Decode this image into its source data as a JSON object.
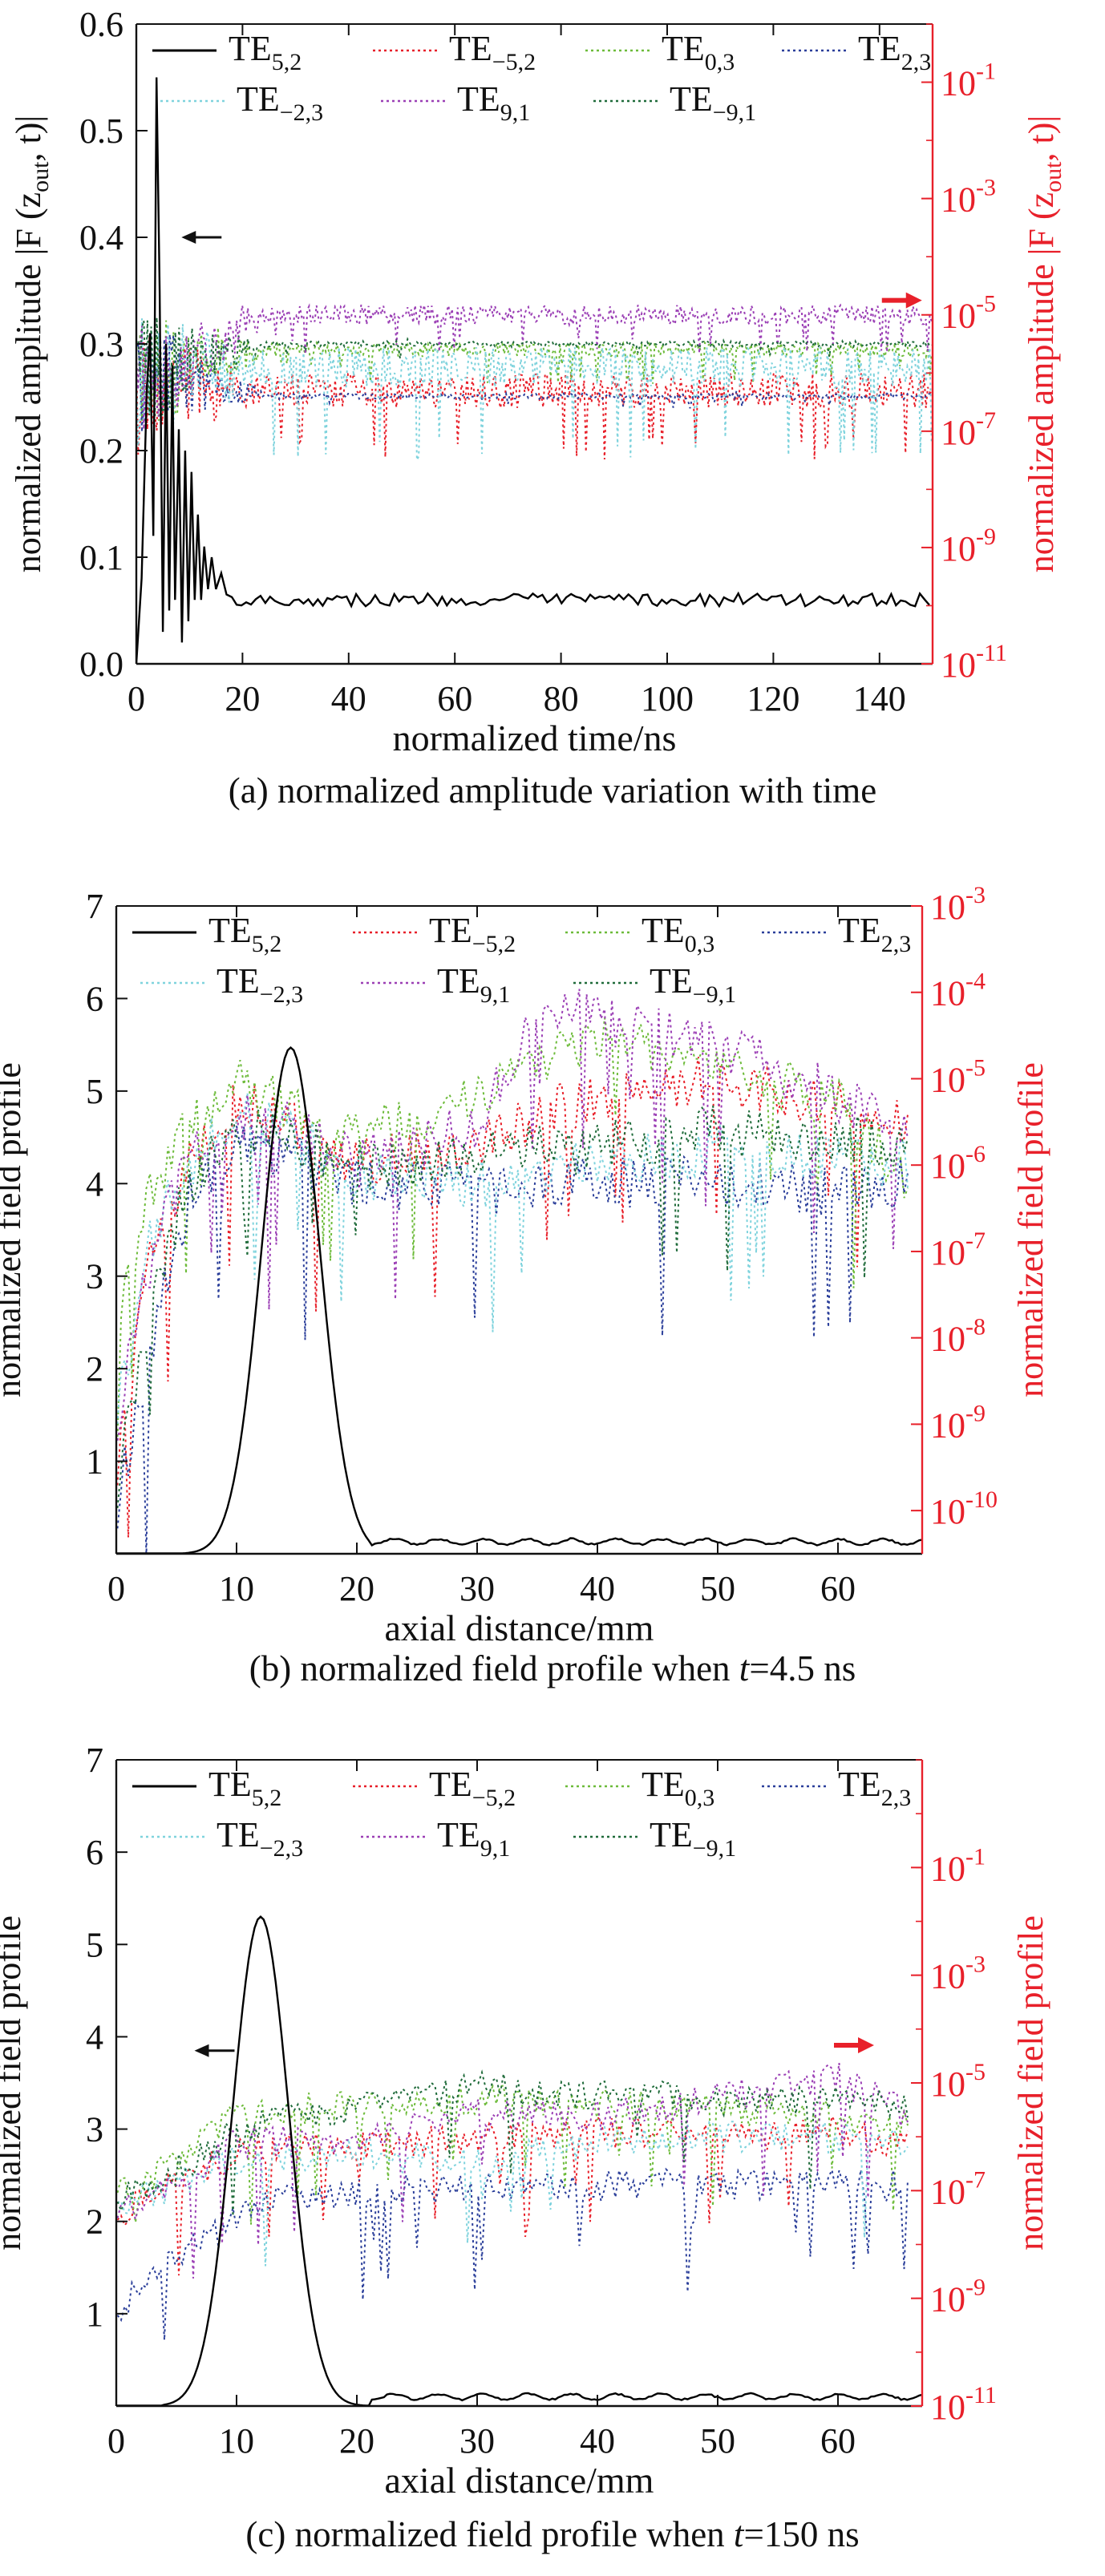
{
  "chart_data": [
    {
      "type": "line",
      "id": "a",
      "caption_parts": [
        "(a) normalized amplitude variation with time"
      ],
      "xlabel": "normalized time/ns",
      "ylabel_left": "normalized amplitude |F (z",
      "ylabel_left_sub": "out",
      "ylabel_left_tail": ", t)|",
      "ylabel_right": "normalized amplitude |F (z",
      "ylabel_right_sub": "out",
      "ylabel_right_tail": ", t)|",
      "xlim": [
        0,
        150
      ],
      "ylim_left": [
        0,
        0.6
      ],
      "ylim_right_log10": [
        -11,
        0
      ],
      "right_axis_scale": "log",
      "xticks": [
        "0",
        "20",
        "40",
        "60",
        "80",
        "100",
        "120",
        "140"
      ],
      "xtick_values": [
        0,
        20,
        40,
        60,
        80,
        100,
        120,
        140
      ],
      "yticks_left": [
        "0.0",
        "0.1",
        "0.2",
        "0.3",
        "0.4",
        "0.5",
        "0.6"
      ],
      "ytick_left_values": [
        0,
        0.1,
        0.2,
        0.3,
        0.4,
        0.5,
        0.6
      ],
      "yticks_right_exp": [
        "-1",
        "-3",
        "-5",
        "-7",
        "-9",
        "-11"
      ],
      "ytick_right_values": [
        -1,
        -3,
        -5,
        -7,
        -9,
        -11
      ],
      "tick_base": "10",
      "arrow_left": {
        "x": 8.5,
        "y": 0.4,
        "axis": "left"
      },
      "arrow_right": {
        "x": 148,
        "y": -4.75,
        "axis": "right"
      },
      "series": [
        {
          "name": "TE",
          "sub": "5,2",
          "color": "#000000",
          "style": "solid",
          "axis": "left",
          "kind": "main_time",
          "points": [
            [
              0,
              0.0
            ],
            [
              1,
              0.08
            ],
            [
              2,
              0.26
            ],
            [
              2.6,
              0.31
            ],
            [
              3.2,
              0.12
            ],
            [
              3.8,
              0.55
            ],
            [
              4.4,
              0.35
            ],
            [
              5,
              0.03
            ],
            [
              5.6,
              0.3
            ],
            [
              6.2,
              0.05
            ],
            [
              6.8,
              0.28
            ],
            [
              7.3,
              0.06
            ],
            [
              8,
              0.22
            ],
            [
              8.6,
              0.02
            ],
            [
              9.2,
              0.2
            ],
            [
              9.8,
              0.04
            ],
            [
              10.4,
              0.18
            ],
            [
              11,
              0.06
            ],
            [
              11.6,
              0.14
            ],
            [
              12.2,
              0.06
            ],
            [
              12.8,
              0.11
            ],
            [
              13.5,
              0.07
            ],
            [
              14.2,
              0.1
            ],
            [
              15,
              0.07
            ],
            [
              16,
              0.085
            ],
            [
              17,
              0.065
            ],
            [
              18,
              0.075
            ],
            [
              150,
              0.06
            ]
          ],
          "steady": 0.06,
          "jitter": 0.006
        },
        {
          "name": "TE",
          "sub": "−5,2",
          "color": "#e8202a",
          "style": "dotted",
          "axis": "right",
          "kind": "time",
          "base": -6.3,
          "spread": 0.6,
          "dips": [
            -7.3,
            -6.9
          ],
          "start": -6.2
        },
        {
          "name": "TE",
          "sub": "0,3",
          "color": "#6dbb3a",
          "style": "dotted",
          "axis": "right",
          "kind": "time",
          "base": -5.6,
          "spread": 0.25,
          "dips": [
            -6.0,
            -5.9
          ],
          "start": -6.0
        },
        {
          "name": "TE",
          "sub": "2,3",
          "color": "#2b3f9a",
          "style": "dotted",
          "axis": "right",
          "kind": "time",
          "base": -6.4,
          "spread": 0.1,
          "dips": [
            -6.5,
            -6.45
          ],
          "start": -6.0
        },
        {
          "name": "TE",
          "sub": "−2,3",
          "color": "#7fd3dd",
          "style": "dotted",
          "axis": "right",
          "kind": "time",
          "base": -5.9,
          "spread": 0.7,
          "dips": [
            -7.3,
            -7.0
          ],
          "start": -6.1
        },
        {
          "name": "TE",
          "sub": "9,1",
          "color": "#9b3fb5",
          "style": "dotted",
          "axis": "right",
          "kind": "time",
          "base": -5.0,
          "spread": 0.35,
          "dips": [
            -5.5,
            -5.4
          ],
          "start": -6.1
        },
        {
          "name": "TE",
          "sub": "−9,1",
          "color": "#1f6b3a",
          "style": "dotted",
          "axis": "right",
          "kind": "time",
          "base": -5.5,
          "spread": 0.1,
          "dips": [
            -5.6,
            -5.55
          ],
          "start": -6.0
        }
      ]
    },
    {
      "type": "line",
      "id": "b",
      "caption_parts": [
        "(b) normalized field profile when ",
        "t",
        "=4.5 ns"
      ],
      "xlabel": "axial distance/mm",
      "ylabel_left": "normalized field profile",
      "ylabel_right": "normalized field profile",
      "xlim": [
        0,
        67
      ],
      "ylim_left": [
        0,
        7
      ],
      "ylim_right_log10": [
        -10.5,
        -3
      ],
      "right_axis_scale": "log",
      "xticks": [
        "0",
        "10",
        "20",
        "30",
        "40",
        "50",
        "60"
      ],
      "xtick_values": [
        0,
        10,
        20,
        30,
        40,
        50,
        60
      ],
      "yticks_left": [
        "1",
        "2",
        "3",
        "4",
        "5",
        "6",
        "7"
      ],
      "ytick_left_values": [
        1,
        2,
        3,
        4,
        5,
        6,
        7
      ],
      "yticks_right_exp": [
        "-3",
        "-4",
        "-5",
        "-6",
        "-7",
        "-8",
        "-9",
        "-10"
      ],
      "ytick_right_values": [
        -3,
        -4,
        -5,
        -6,
        -7,
        -8,
        -9,
        -10
      ],
      "tick_base": "10",
      "series": [
        {
          "name": "TE",
          "sub": "5,2",
          "color": "#000000",
          "style": "solid",
          "axis": "left",
          "kind": "pulse",
          "center": 14.5,
          "peak": 5.47,
          "width": 3.4,
          "cut": [
            5,
            21
          ],
          "tail": 0.13
        },
        {
          "name": "TE",
          "sub": "−5,2",
          "color": "#e8202a",
          "style": "dotted",
          "axis": "right",
          "kind": "space",
          "profile": [
            [
              0,
              -9.5
            ],
            [
              3,
              -7
            ],
            [
              6,
              -6
            ],
            [
              10,
              -5.3
            ],
            [
              14,
              -5.5
            ],
            [
              20,
              -6
            ],
            [
              30,
              -5.7
            ],
            [
              40,
              -5.2
            ],
            [
              50,
              -5
            ],
            [
              60,
              -5.3
            ],
            [
              66,
              -5.6
            ]
          ]
        },
        {
          "name": "TE",
          "sub": "0,3",
          "color": "#6dbb3a",
          "style": "dotted",
          "axis": "right",
          "kind": "space",
          "profile": [
            [
              0,
              -8
            ],
            [
              3,
              -6.2
            ],
            [
              6,
              -5.6
            ],
            [
              10,
              -5.0
            ],
            [
              14,
              -5.3
            ],
            [
              20,
              -5.7
            ],
            [
              30,
              -5.2
            ],
            [
              40,
              -4.5
            ],
            [
              50,
              -4.8
            ],
            [
              60,
              -5.3
            ],
            [
              66,
              -6.2
            ]
          ]
        },
        {
          "name": "TE",
          "sub": "2,3",
          "color": "#2b3f9a",
          "style": "dotted",
          "axis": "right",
          "kind": "space",
          "profile": [
            [
              0,
              -10
            ],
            [
              3,
              -8
            ],
            [
              6,
              -6.4
            ],
            [
              10,
              -5.8
            ],
            [
              14,
              -5.9
            ],
            [
              20,
              -6.2
            ],
            [
              30,
              -6.3
            ],
            [
              40,
              -6.2
            ],
            [
              50,
              -6.2
            ],
            [
              60,
              -6.3
            ],
            [
              66,
              -6.2
            ]
          ]
        },
        {
          "name": "TE",
          "sub": "−2,3",
          "color": "#7fd3dd",
          "style": "dotted",
          "axis": "right",
          "kind": "space",
          "profile": [
            [
              0,
              -8.8
            ],
            [
              3,
              -6.8
            ],
            [
              6,
              -6
            ],
            [
              10,
              -5.4
            ],
            [
              14,
              -5.6
            ],
            [
              20,
              -6.1
            ],
            [
              30,
              -6.2
            ],
            [
              40,
              -6
            ],
            [
              50,
              -5.8
            ],
            [
              60,
              -5.9
            ],
            [
              66,
              -6
            ]
          ]
        },
        {
          "name": "TE",
          "sub": "9,1",
          "color": "#9b3fb5",
          "style": "dotted",
          "axis": "right",
          "kind": "space",
          "profile": [
            [
              0,
              -9
            ],
            [
              3,
              -7
            ],
            [
              6,
              -6
            ],
            [
              10,
              -5.4
            ],
            [
              14,
              -5.5
            ],
            [
              20,
              -6
            ],
            [
              30,
              -5.5
            ],
            [
              36,
              -4.1
            ],
            [
              40,
              -4.3
            ],
            [
              50,
              -4.6
            ],
            [
              60,
              -5.2
            ],
            [
              66,
              -5.7
            ]
          ]
        },
        {
          "name": "TE",
          "sub": "−9,1",
          "color": "#1f6b3a",
          "style": "dotted",
          "axis": "right",
          "kind": "space",
          "profile": [
            [
              0,
              -9.8
            ],
            [
              3,
              -7.5
            ],
            [
              6,
              -6.2
            ],
            [
              10,
              -5.6
            ],
            [
              14,
              -5.7
            ],
            [
              20,
              -6
            ],
            [
              30,
              -5.9
            ],
            [
              40,
              -5.8
            ],
            [
              50,
              -5.6
            ],
            [
              60,
              -5.7
            ],
            [
              66,
              -5.8
            ]
          ]
        }
      ]
    },
    {
      "type": "line",
      "id": "c",
      "caption_parts": [
        "(c) normalized field profile when ",
        "t",
        "=150 ns"
      ],
      "xlabel": "axial distance/mm",
      "ylabel_left": "normalized field profile",
      "ylabel_right": "normalized field profile",
      "xlim": [
        0,
        67
      ],
      "ylim_left": [
        0,
        7
      ],
      "ylim_right_log10": [
        -11,
        1
      ],
      "right_axis_scale": "log",
      "xticks": [
        "0",
        "10",
        "20",
        "30",
        "40",
        "50",
        "60"
      ],
      "xtick_values": [
        0,
        10,
        20,
        30,
        40,
        50,
        60
      ],
      "yticks_left": [
        "1",
        "2",
        "3",
        "4",
        "5",
        "6",
        "7"
      ],
      "ytick_left_values": [
        1,
        2,
        3,
        4,
        5,
        6,
        7
      ],
      "yticks_right_exp": [
        "-1",
        "-3",
        "-5",
        "-7",
        "-9",
        "-11"
      ],
      "ytick_right_values": [
        -1,
        -3,
        -5,
        -7,
        -9,
        -11
      ],
      "tick_base": "10",
      "arrow_left": {
        "x": 6.5,
        "y": 3.85,
        "axis": "left"
      },
      "arrow_right": {
        "x": 63,
        "y": -4.3,
        "axis": "right"
      },
      "series": [
        {
          "name": "TE",
          "sub": "5,2",
          "color": "#000000",
          "style": "solid",
          "axis": "left",
          "kind": "pulse",
          "center": 12,
          "peak": 5.3,
          "width": 3.3,
          "cut": [
            4,
            21
          ],
          "tail": 0.1
        },
        {
          "name": "TE",
          "sub": "−5,2",
          "color": "#e8202a",
          "style": "dotted",
          "axis": "right",
          "kind": "space",
          "profile": [
            [
              0,
              -7.5
            ],
            [
              4,
              -7
            ],
            [
              10,
              -6.3
            ],
            [
              20,
              -6.2
            ],
            [
              30,
              -6
            ],
            [
              40,
              -5.9
            ],
            [
              50,
              -6
            ],
            [
              60,
              -5.9
            ],
            [
              66,
              -6.2
            ]
          ]
        },
        {
          "name": "TE",
          "sub": "0,3",
          "color": "#6dbb3a",
          "style": "dotted",
          "axis": "right",
          "kind": "space",
          "profile": [
            [
              0,
              -7
            ],
            [
              4,
              -6.6
            ],
            [
              10,
              -5.6
            ],
            [
              20,
              -5.4
            ],
            [
              30,
              -5.3
            ],
            [
              40,
              -5.4
            ],
            [
              50,
              -5.5
            ],
            [
              60,
              -5.6
            ],
            [
              66,
              -5.8
            ]
          ]
        },
        {
          "name": "TE",
          "sub": "2,3",
          "color": "#2b3f9a",
          "style": "dotted",
          "axis": "right",
          "kind": "space",
          "profile": [
            [
              0,
              -9.3
            ],
            [
              4,
              -8.2
            ],
            [
              8,
              -7.9
            ],
            [
              12,
              -7.2
            ],
            [
              20,
              -7.0
            ],
            [
              30,
              -6.9
            ],
            [
              40,
              -6.9
            ],
            [
              50,
              -6.9
            ],
            [
              60,
              -6.9
            ],
            [
              66,
              -6.9
            ]
          ]
        },
        {
          "name": "TE",
          "sub": "−2,3",
          "color": "#7fd3dd",
          "style": "dotted",
          "axis": "right",
          "kind": "space",
          "profile": [
            [
              0,
              -7.2
            ],
            [
              4,
              -7
            ],
            [
              10,
              -6.4
            ],
            [
              20,
              -6.3
            ],
            [
              30,
              -6.5
            ],
            [
              40,
              -6.1
            ],
            [
              50,
              -6
            ],
            [
              60,
              -6
            ],
            [
              66,
              -6.1
            ]
          ]
        },
        {
          "name": "TE",
          "sub": "9,1",
          "color": "#9b3fb5",
          "style": "dotted",
          "axis": "right",
          "kind": "space",
          "profile": [
            [
              0,
              -7.5
            ],
            [
              4,
              -7
            ],
            [
              10,
              -6.1
            ],
            [
              20,
              -6
            ],
            [
              30,
              -5.6
            ],
            [
              40,
              -5.6
            ],
            [
              50,
              -5.3
            ],
            [
              60,
              -4.9
            ],
            [
              66,
              -5.6
            ]
          ]
        },
        {
          "name": "TE",
          "sub": "−9,1",
          "color": "#1f6b3a",
          "style": "dotted",
          "axis": "right",
          "kind": "space",
          "profile": [
            [
              0,
              -7.2
            ],
            [
              4,
              -6.8
            ],
            [
              10,
              -5.9
            ],
            [
              20,
              -5.4
            ],
            [
              30,
              -5.1
            ],
            [
              40,
              -5.2
            ],
            [
              50,
              -5.3
            ],
            [
              60,
              -5.3
            ],
            [
              66,
              -5.5
            ]
          ]
        }
      ]
    }
  ],
  "colors": {
    "axis": "#111111",
    "right_axis": "#e8202a",
    "arrow_left": "#111111",
    "arrow_right": "#e8202a"
  }
}
